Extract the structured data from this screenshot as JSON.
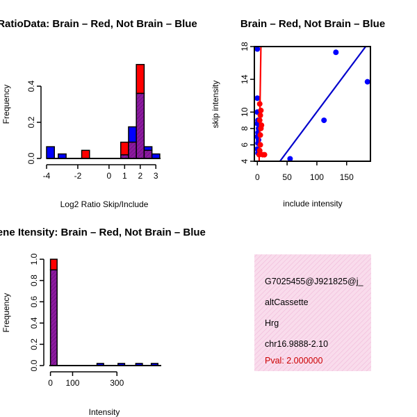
{
  "chart_data": [
    {
      "type": "bar",
      "title": "RatioData: Brain – Red, Not Brain – Blue",
      "xlabel": "Log2 Ratio Skip/Include",
      "ylabel": "Frequency",
      "xlim": [
        -4,
        3.3
      ],
      "ylim": [
        0,
        0.5
      ],
      "xticks": [
        -4,
        -2,
        0,
        1,
        2,
        3
      ],
      "yticks": [
        0.0,
        0.2,
        0.4
      ],
      "bin_width": 0.5,
      "series": [
        {
          "name": "Brain",
          "color": "#ff0000",
          "bars": [
            {
              "x0": -1.75,
              "x1": -1.25,
              "value": 0.045
            },
            {
              "x0": 0.75,
              "x1": 1.25,
              "value": 0.09
            },
            {
              "x0": 1.25,
              "x1": 1.75,
              "value": 0.09
            },
            {
              "x0": 1.75,
              "x1": 2.25,
              "value": 0.52
            },
            {
              "x0": 2.25,
              "x1": 2.75,
              "value": 0.045
            }
          ]
        },
        {
          "name": "Not Brain",
          "color": "#0000ff",
          "bars": [
            {
              "x0": -4.0,
              "x1": -3.5,
              "value": 0.065
            },
            {
              "x0": -3.25,
              "x1": -2.75,
              "value": 0.025
            },
            {
              "x0": 0.75,
              "x1": 1.25,
              "value": 0.02
            },
            {
              "x0": 1.25,
              "x1": 1.75,
              "value": 0.175
            },
            {
              "x0": 1.75,
              "x1": 2.25,
              "value": 0.36
            },
            {
              "x0": 2.25,
              "x1": 2.75,
              "value": 0.065
            },
            {
              "x0": 2.75,
              "x1": 3.25,
              "value": 0.025
            }
          ]
        }
      ]
    },
    {
      "type": "scatter",
      "title": "Brain – Red, Not Brain – Blue",
      "xlabel": "include intensity",
      "ylabel": "skip intensity",
      "xlim": [
        -5,
        190
      ],
      "ylim": [
        4,
        18
      ],
      "xticks": [
        0,
        50,
        100,
        150
      ],
      "yticks": [
        4,
        6,
        8,
        10,
        14,
        18
      ],
      "series": [
        {
          "name": "Brain",
          "color": "#ff0000",
          "points": [
            [
              3,
              4.8
            ],
            [
              4,
              5.3
            ],
            [
              5,
              6.0
            ],
            [
              5,
              7.2
            ],
            [
              6,
              8.0
            ],
            [
              7,
              8.4
            ],
            [
              4,
              9.0
            ],
            [
              5,
              9.6
            ],
            [
              6,
              10.2
            ],
            [
              4,
              11.0
            ],
            [
              9,
              4.8
            ],
            [
              12,
              4.8
            ]
          ],
          "fit_line": [
            [
              3,
              4.0
            ],
            [
              6,
              18.0
            ]
          ]
        },
        {
          "name": "Not Brain",
          "color": "#0000ff",
          "points": [
            [
              0,
              17.7
            ],
            [
              0,
              11.7
            ],
            [
              0,
              10.0
            ],
            [
              1,
              9.0
            ],
            [
              0,
              8.6
            ],
            [
              2,
              8.0
            ],
            [
              1,
              7.5
            ],
            [
              0,
              7.0
            ],
            [
              2,
              6.6
            ],
            [
              1,
              6.2
            ],
            [
              0,
              5.5
            ],
            [
              1,
              5.0
            ],
            [
              55,
              4.3
            ],
            [
              112,
              9.0
            ],
            [
              132,
              17.3
            ],
            [
              185,
              13.7
            ]
          ],
          "fit_line": [
            [
              38,
              4.0
            ],
            [
              182,
              18.0
            ]
          ]
        }
      ]
    },
    {
      "type": "bar",
      "title": "Gene Itensity: Brain – Red, Not Brain – Blue",
      "xlabel": "Intensity",
      "ylabel": "Frequency",
      "xlim": [
        -5,
        500
      ],
      "ylim": [
        0,
        1.0
      ],
      "xticks": [
        0,
        100,
        300
      ],
      "yticks": [
        0.0,
        0.2,
        0.4,
        0.6,
        0.8,
        1.0
      ],
      "bin_width": 40,
      "series": [
        {
          "name": "Brain",
          "color": "#ff0000",
          "bars": [
            {
              "x0": 0,
              "x1": 30,
              "value": 1.0
            }
          ]
        },
        {
          "name": "Not Brain",
          "color": "#0000ff",
          "bars": [
            {
              "x0": 0,
              "x1": 30,
              "value": 0.9
            },
            {
              "x0": 210,
              "x1": 240,
              "value": 0.02
            },
            {
              "x0": 305,
              "x1": 335,
              "value": 0.02
            },
            {
              "x0": 385,
              "x1": 415,
              "value": 0.02
            },
            {
              "x0": 455,
              "x1": 485,
              "value": 0.02
            }
          ]
        }
      ]
    }
  ],
  "info_box": {
    "lines": [
      "G7025455@J921825@j_",
      "altCassette",
      "Hrg",
      "chr16.9888-2.10"
    ],
    "pval": "Pval: 2.000000",
    "pval_color": "#cc0000",
    "fill_color": "#f9dcec",
    "hatch_color": "#f0b8d8"
  },
  "colors": {
    "red": "#ff0000",
    "blue": "#0000ff",
    "purple": "#8b1a9e",
    "fit_red": "#ff0000",
    "fit_blue": "#0000cc"
  }
}
